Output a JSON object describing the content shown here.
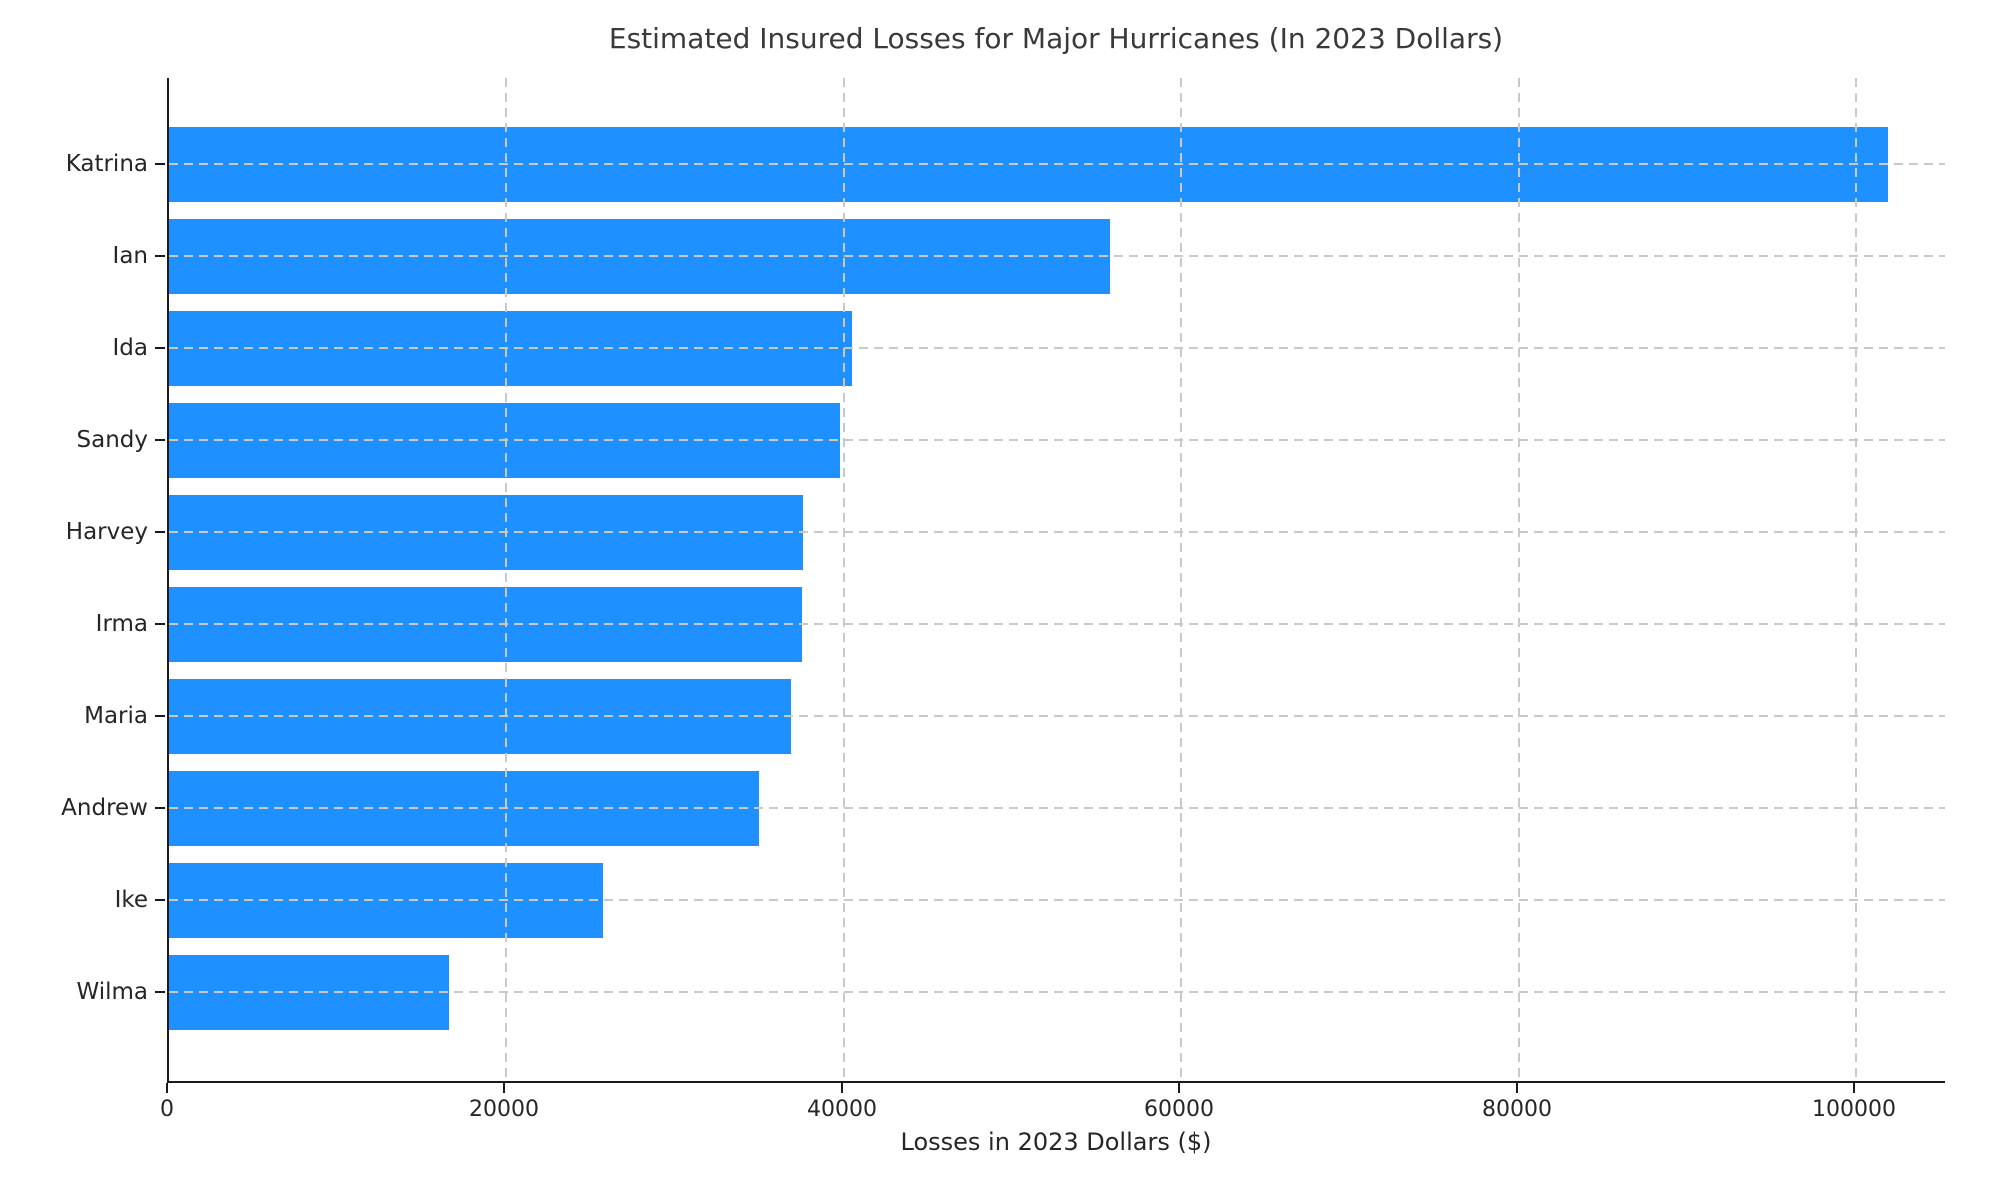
{
  "chart_data": {
    "type": "bar",
    "orientation": "horizontal",
    "title": "Estimated Insured Losses for Major Hurricanes (In 2023 Dollars)",
    "xlabel": "Losses in 2023 Dollars ($)",
    "ylabel": "",
    "categories": [
      "Katrina",
      "Ian",
      "Ida",
      "Sandy",
      "Harvey",
      "Irma",
      "Maria",
      "Andrew",
      "Ike",
      "Wilma"
    ],
    "values": [
      101900,
      55800,
      40500,
      39800,
      37600,
      37500,
      36900,
      35000,
      25700,
      16600
    ],
    "xlim": [
      0,
      105400
    ],
    "xticks": [
      0,
      20000,
      40000,
      60000,
      80000,
      100000
    ],
    "xtick_labels": [
      "0",
      "20000",
      "40000",
      "60000",
      "80000",
      "100000"
    ],
    "bar_color": "#1E90FF",
    "grid": true,
    "grid_color": "#c9c9c9",
    "grid_style": "dashed",
    "legend": "none"
  }
}
